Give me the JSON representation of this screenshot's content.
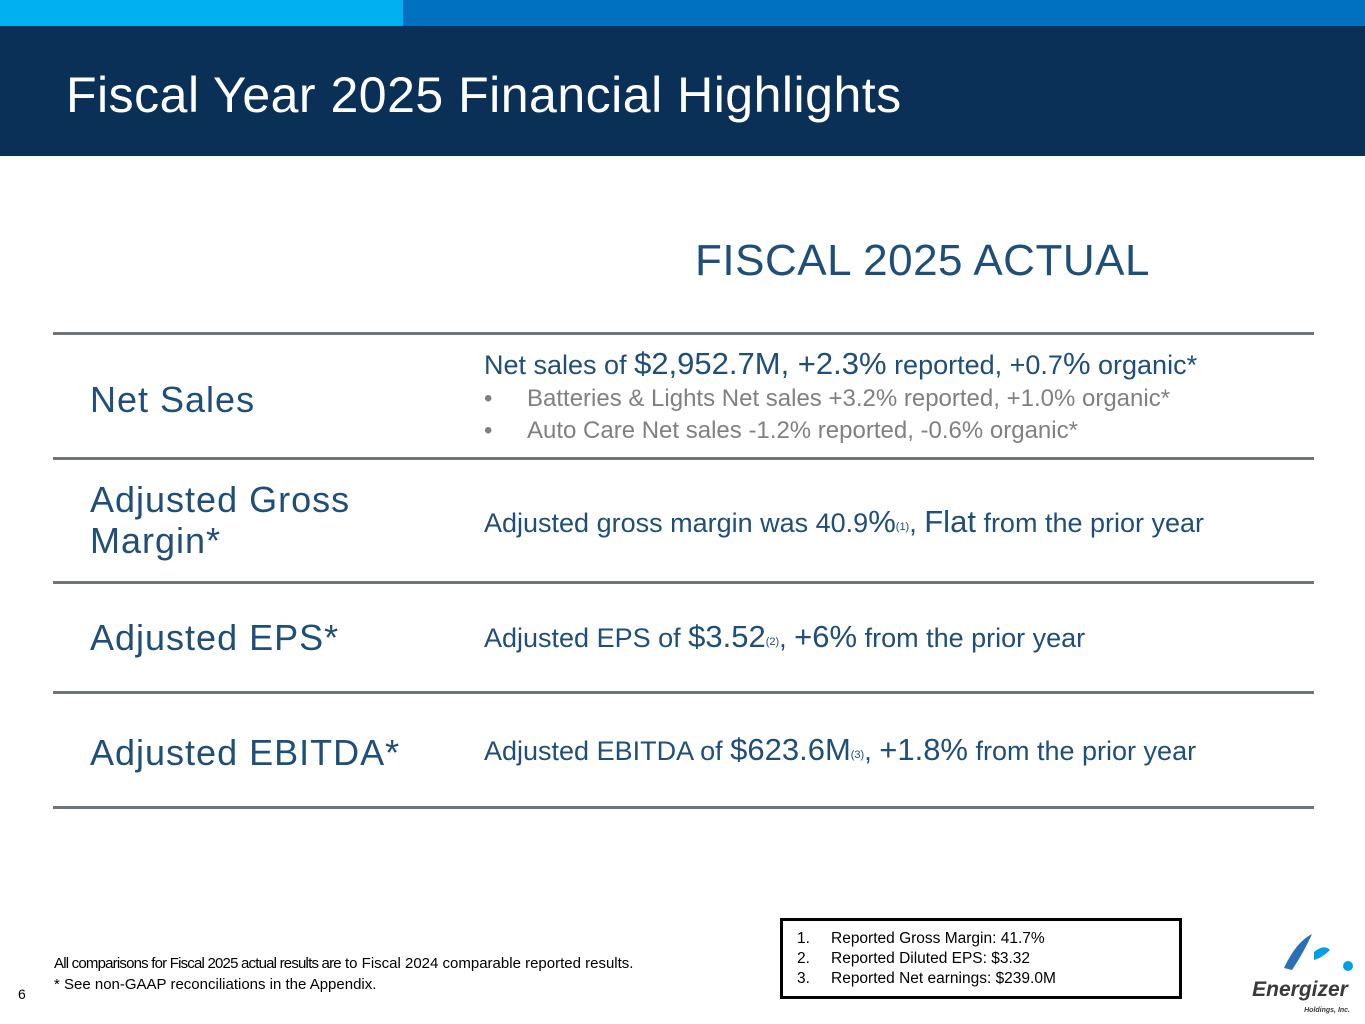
{
  "slide": {
    "title": "Fiscal Year 2025 Financial Highlights",
    "column_header": "FISCAL 2025 ACTUAL",
    "page_number": "6"
  },
  "rows": {
    "net_sales": {
      "label": "Net Sales",
      "t1": "Net sales of ",
      "v1": "$2,952.7M, +2.3%",
      "t2": " reported, +0.7",
      "v2": "%",
      "t3": " organic*",
      "bullets": [
        "Batteries & Lights Net sales +3.2% reported, +1.0% organic*",
        "Auto Care Net sales -1.2% reported, -0.6% organic*"
      ]
    },
    "gross_margin": {
      "label_line1": "Adjusted Gross",
      "label_line2": "Margin*",
      "t1": "Adjusted gross margin was 40.9",
      "v1": "%",
      "sup": "(1)",
      "t2": ", ",
      "v2": "Flat",
      "t3": " from the prior year"
    },
    "eps": {
      "label": "Adjusted EPS*",
      "t1": "Adjusted EPS of ",
      "v1": "$3.52",
      "sup": "(2)",
      "t2": ", ",
      "v2": "+6%",
      "t3": " from the prior year"
    },
    "ebitda": {
      "label": "Adjusted EBITDA*",
      "t1": "Adjusted EBITDA of ",
      "v1": "$623.6M",
      "sup": "(3)",
      "t2": ", ",
      "v2": "+1.8%",
      "t3": " from the prior year"
    }
  },
  "footnotes": {
    "line1_a": "All comparisons for Fiscal 2025 actual results are",
    "line1_b": " to Fiscal 2024 comparable reported results.",
    "line2": "* See non-GAAP reconciliations in the Appendix."
  },
  "notes": [
    {
      "num": "1.",
      "text": "Reported Gross Margin: 41.7%"
    },
    {
      "num": "2.",
      "text": "Reported Diluted EPS: $3.32"
    },
    {
      "num": "3.",
      "text": "Reported Net earnings: $239.0M"
    }
  ],
  "logo": {
    "name": "Energizer",
    "sub": "Holdings, Inc."
  },
  "colors": {
    "header_bg": "#0a3057",
    "accent_light": "#00b0f0",
    "accent_dark": "#0070c0",
    "text_blue": "#1f4e79",
    "bullet_gray": "#808080"
  }
}
